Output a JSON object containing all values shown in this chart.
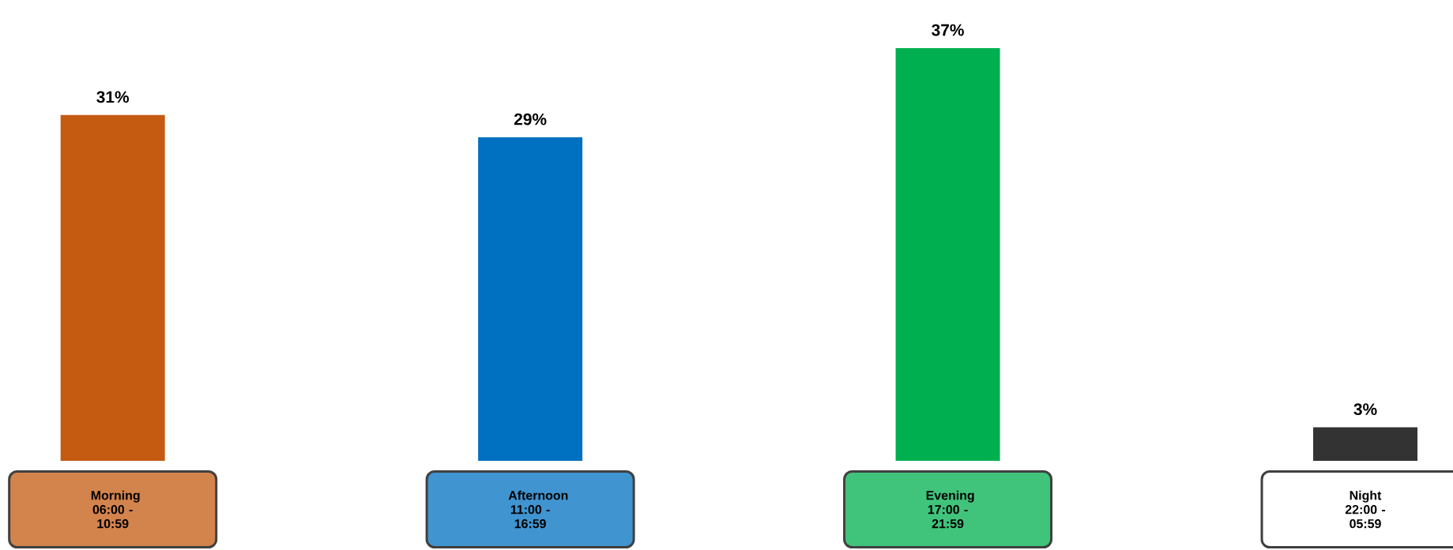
{
  "chart_data": {
    "type": "bar",
    "categories": [
      "Morning 06:00 - 10:59",
      "Afternoon 11:00 - 16:59",
      "Evening 17:00 - 21:59",
      "Night 22:00 - 05:59"
    ],
    "values": [
      31,
      29,
      37,
      3
    ],
    "colors": [
      "#c55a11",
      "#0070c0",
      "#00b050",
      "#333333"
    ],
    "value_labels": [
      "31%",
      "29%",
      "37%",
      "3%"
    ]
  }
}
